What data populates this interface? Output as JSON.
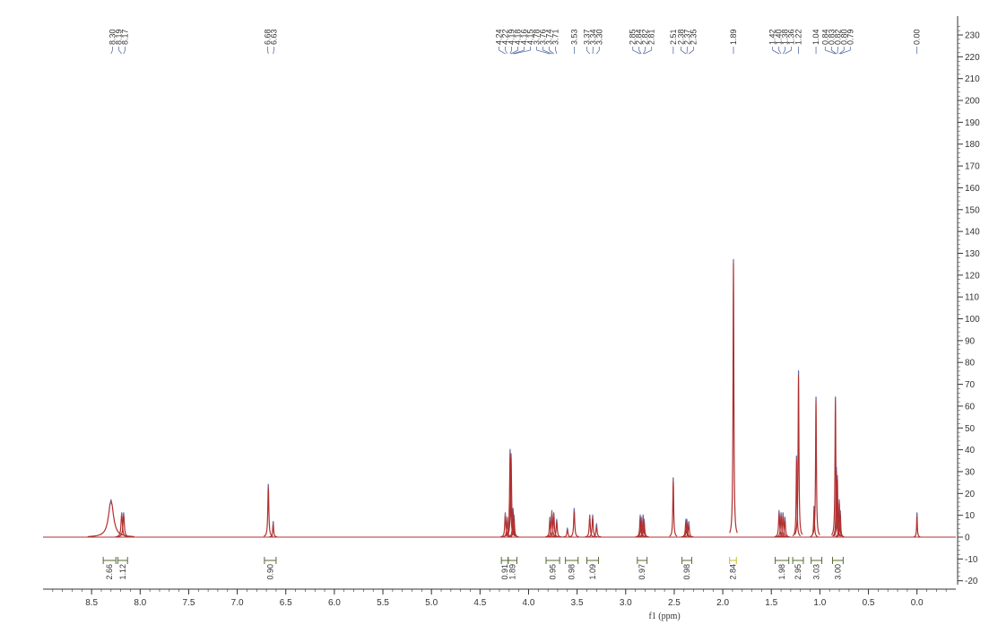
{
  "chart_data": {
    "type": "line",
    "title": "",
    "xlabel": "f1 (ppm)",
    "ylabel": "",
    "xlim": [
      9.0,
      -0.4
    ],
    "ylim": [
      -22,
      240
    ],
    "x_ticks": [
      "8.5",
      "8.0",
      "7.5",
      "7.0",
      "6.5",
      "6.0",
      "5.5",
      "5.0",
      "4.5",
      "4.0",
      "3.5",
      "3.0",
      "2.5",
      "2.0",
      "1.5",
      "1.0",
      "0.5",
      "0.0"
    ],
    "y_ticks": [
      "230",
      "220",
      "210",
      "200",
      "190",
      "180",
      "170",
      "160",
      "150",
      "140",
      "130",
      "120",
      "110",
      "100",
      "90",
      "80",
      "70",
      "60",
      "50",
      "40",
      "30",
      "20",
      "10",
      "0",
      "-10",
      "-20"
    ],
    "peaks": [
      {
        "x": 8.3,
        "h": 17,
        "w": 0.03
      },
      {
        "x": 8.19,
        "h": 11,
        "w": 0.008
      },
      {
        "x": 8.17,
        "h": 11,
        "w": 0.008
      },
      {
        "x": 6.68,
        "h": 24,
        "w": 0.006
      },
      {
        "x": 6.63,
        "h": 7,
        "w": 0.005
      },
      {
        "x": 4.24,
        "h": 11,
        "w": 0.006
      },
      {
        "x": 4.22,
        "h": 9,
        "w": 0.006
      },
      {
        "x": 4.19,
        "h": 40,
        "w": 0.006
      },
      {
        "x": 4.18,
        "h": 38,
        "w": 0.006
      },
      {
        "x": 4.16,
        "h": 13,
        "w": 0.006
      },
      {
        "x": 4.15,
        "h": 10,
        "w": 0.006
      },
      {
        "x": 3.78,
        "h": 9,
        "w": 0.006
      },
      {
        "x": 3.76,
        "h": 12,
        "w": 0.006
      },
      {
        "x": 3.74,
        "h": 11,
        "w": 0.006
      },
      {
        "x": 3.71,
        "h": 8,
        "w": 0.006
      },
      {
        "x": 3.6,
        "h": 4,
        "w": 0.006
      },
      {
        "x": 3.53,
        "h": 13,
        "w": 0.006
      },
      {
        "x": 3.37,
        "h": 10,
        "w": 0.006
      },
      {
        "x": 3.34,
        "h": 10,
        "w": 0.006
      },
      {
        "x": 3.3,
        "h": 6,
        "w": 0.006
      },
      {
        "x": 2.85,
        "h": 10,
        "w": 0.006
      },
      {
        "x": 2.84,
        "h": 9,
        "w": 0.006
      },
      {
        "x": 2.82,
        "h": 10,
        "w": 0.006
      },
      {
        "x": 2.81,
        "h": 8,
        "w": 0.006
      },
      {
        "x": 2.51,
        "h": 27,
        "w": 0.005
      },
      {
        "x": 2.38,
        "h": 8,
        "w": 0.006
      },
      {
        "x": 2.37,
        "h": 8,
        "w": 0.006
      },
      {
        "x": 2.35,
        "h": 7,
        "w": 0.006
      },
      {
        "x": 1.89,
        "h": 127,
        "w": 0.005
      },
      {
        "x": 1.42,
        "h": 12,
        "w": 0.006
      },
      {
        "x": 1.4,
        "h": 11,
        "w": 0.006
      },
      {
        "x": 1.38,
        "h": 11,
        "w": 0.006
      },
      {
        "x": 1.36,
        "h": 9,
        "w": 0.006
      },
      {
        "x": 1.24,
        "h": 37,
        "w": 0.005
      },
      {
        "x": 1.22,
        "h": 76,
        "w": 0.005
      },
      {
        "x": 1.04,
        "h": 64,
        "w": 0.005
      },
      {
        "x": 1.06,
        "h": 14,
        "w": 0.005
      },
      {
        "x": 0.84,
        "h": 64,
        "w": 0.005
      },
      {
        "x": 0.83,
        "h": 32,
        "w": 0.005
      },
      {
        "x": 0.82,
        "h": 28,
        "w": 0.005
      },
      {
        "x": 0.8,
        "h": 17,
        "w": 0.005
      },
      {
        "x": 0.79,
        "h": 12,
        "w": 0.005
      },
      {
        "x": 0.0,
        "h": 11,
        "w": 0.004
      }
    ],
    "peak_labels": [
      {
        "group": [
          {
            "text": "8.30",
            "x": 8.3
          },
          {
            "text": "8.19",
            "x": 8.19
          },
          {
            "text": "8.17",
            "x": 8.17
          }
        ]
      },
      {
        "group": [
          {
            "text": "6.68",
            "x": 6.68
          },
          {
            "text": "6.63",
            "x": 6.63
          }
        ]
      },
      {
        "group": [
          {
            "text": "4.24",
            "x": 4.24
          },
          {
            "text": "4.22",
            "x": 4.22
          },
          {
            "text": "4.19",
            "x": 4.19
          },
          {
            "text": "4.18",
            "x": 4.18
          },
          {
            "text": "4.16",
            "x": 4.16
          },
          {
            "text": "4.15",
            "x": 4.15
          },
          {
            "text": "3.78",
            "x": 3.78
          },
          {
            "text": "3.76",
            "x": 3.76
          },
          {
            "text": "3.74",
            "x": 3.74
          },
          {
            "text": "3.71",
            "x": 3.71
          }
        ]
      },
      {
        "group": [
          {
            "text": "3.53",
            "x": 3.53
          }
        ]
      },
      {
        "group": [
          {
            "text": "3.37",
            "x": 3.37
          },
          {
            "text": "3.34",
            "x": 3.34
          },
          {
            "text": "3.30",
            "x": 3.3
          }
        ]
      },
      {
        "group": [
          {
            "text": "2.85",
            "x": 2.85
          },
          {
            "text": "2.84",
            "x": 2.84
          },
          {
            "text": "2.82",
            "x": 2.82
          },
          {
            "text": "2.81",
            "x": 2.81
          }
        ]
      },
      {
        "group": [
          {
            "text": "2.51",
            "x": 2.51
          }
        ]
      },
      {
        "group": [
          {
            "text": "2.38",
            "x": 2.38
          },
          {
            "text": "2.37",
            "x": 2.37
          },
          {
            "text": "2.35",
            "x": 2.35
          }
        ]
      },
      {
        "group": [
          {
            "text": "1.89",
            "x": 1.89
          }
        ]
      },
      {
        "group": [
          {
            "text": "1.42",
            "x": 1.42
          },
          {
            "text": "1.40",
            "x": 1.4
          },
          {
            "text": "1.38",
            "x": 1.38
          },
          {
            "text": "1.36",
            "x": 1.36
          }
        ]
      },
      {
        "group": [
          {
            "text": "1.22",
            "x": 1.22
          }
        ]
      },
      {
        "group": [
          {
            "text": "1.04",
            "x": 1.04
          }
        ]
      },
      {
        "group": [
          {
            "text": "0.84",
            "x": 0.84
          },
          {
            "text": "0.83",
            "x": 0.83
          },
          {
            "text": "0.82",
            "x": 0.82
          },
          {
            "text": "0.80",
            "x": 0.8
          },
          {
            "text": "0.79",
            "x": 0.79
          }
        ]
      },
      {
        "group": [
          {
            "text": "0.00",
            "x": 0.0
          }
        ]
      }
    ],
    "integrals": [
      {
        "from": 8.38,
        "to": 8.25,
        "value": "2.66"
      },
      {
        "from": 8.23,
        "to": 8.13,
        "value": "1.12"
      },
      {
        "from": 6.72,
        "to": 6.6,
        "value": "0.90"
      },
      {
        "from": 4.28,
        "to": 4.21,
        "value": "0.91"
      },
      {
        "from": 4.21,
        "to": 4.12,
        "value": "1.89"
      },
      {
        "from": 3.82,
        "to": 3.68,
        "value": "0.95"
      },
      {
        "from": 3.62,
        "to": 3.49,
        "value": "0.98"
      },
      {
        "from": 3.4,
        "to": 3.28,
        "value": "1.09"
      },
      {
        "from": 2.88,
        "to": 2.78,
        "value": "0.97"
      },
      {
        "from": 2.42,
        "to": 2.32,
        "value": "0.98"
      },
      {
        "from": 1.93,
        "to": 1.86,
        "value": "2.84"
      },
      {
        "from": 1.46,
        "to": 1.32,
        "value": "1.98"
      },
      {
        "from": 1.28,
        "to": 1.17,
        "value": "2.95"
      },
      {
        "from": 1.09,
        "to": 0.98,
        "value": "3.03"
      },
      {
        "from": 0.87,
        "to": 0.76,
        "value": "3.00"
      }
    ]
  },
  "colors": {
    "spectrum": "#b03030",
    "peak_label_line": "#5a6fa8",
    "integral": "#556b2f",
    "integral_highlight": "#c8c020",
    "axis": "#333333"
  }
}
